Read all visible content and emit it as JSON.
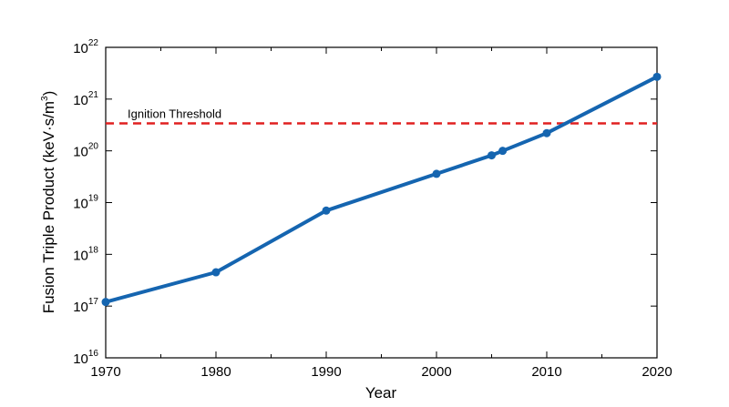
{
  "chart_data": {
    "type": "line",
    "xlabel": "Year",
    "ylabel": "Fusion Triple Product (keV·s/m",
    "ylabel_exponent": "3",
    "ylabel_close": ")",
    "xlim": [
      1970,
      2020
    ],
    "ylim": [
      1e+16,
      1e+22
    ],
    "yscale": "log",
    "grid": false,
    "x_ticks": [
      1970,
      1980,
      1990,
      2000,
      2010,
      2020
    ],
    "x_minor_ticks": [
      1975,
      1985,
      1995,
      2005,
      2015
    ],
    "y_ticks": [
      {
        "base": "10",
        "exponent": "16",
        "value": 1e+16
      },
      {
        "base": "10",
        "exponent": "17",
        "value": 1e+17
      },
      {
        "base": "10",
        "exponent": "18",
        "value": 1e+18
      },
      {
        "base": "10",
        "exponent": "19",
        "value": 1e+19
      },
      {
        "base": "10",
        "exponent": "20",
        "value": 1e+20
      },
      {
        "base": "10",
        "exponent": "21",
        "value": 1e+21
      },
      {
        "base": "10",
        "exponent": "22",
        "value": 1e+22
      }
    ],
    "series": [
      {
        "color": "#1565b0",
        "points": [
          {
            "x": 1970,
            "y": 1.2e+17
          },
          {
            "x": 1980,
            "y": 4.5e+17
          },
          {
            "x": 1990,
            "y": 7e+18
          },
          {
            "x": 2000,
            "y": 3.6e+19
          },
          {
            "x": 2005,
            "y": 8.2e+19
          },
          {
            "x": 2006,
            "y": 1e+20
          },
          {
            "x": 2010,
            "y": 2.2e+20
          },
          {
            "x": 2020,
            "y": 2.7e+21
          }
        ]
      }
    ],
    "reference_line": {
      "label": "Ignition Threshold",
      "y": 3.4e+20,
      "color": "#e02020",
      "style": "dashed"
    }
  }
}
